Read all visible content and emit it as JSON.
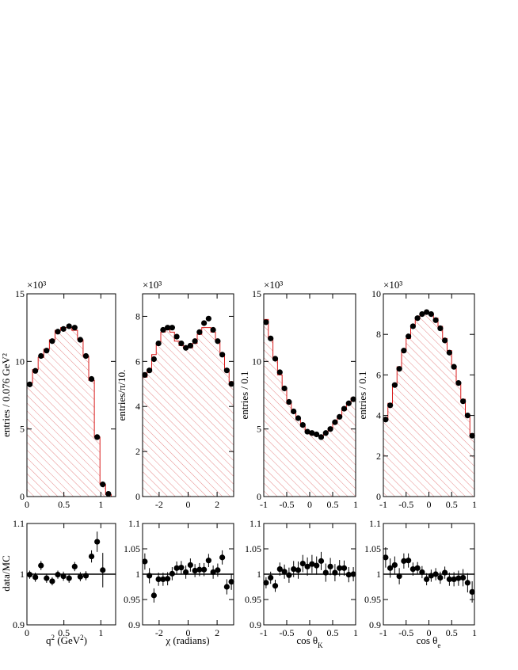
{
  "chart_data": [
    {
      "type": "histogram",
      "ylabel": "entries / 0.076 GeV²",
      "multiplier": "×10³",
      "xlim": [
        0,
        1.2
      ],
      "ylim": [
        0,
        15
      ],
      "xticks": [
        0,
        0.5,
        1
      ],
      "xtick_labels": [
        "0",
        "0.5",
        "1"
      ],
      "yticks": [
        0,
        5,
        10,
        15
      ],
      "ytick_labels": [
        "0",
        "5",
        "10",
        "15"
      ],
      "bin_edges": [
        0,
        0.076,
        0.152,
        0.228,
        0.304,
        0.38,
        0.456,
        0.532,
        0.608,
        0.684,
        0.76,
        0.836,
        0.912,
        0.988,
        1.064,
        1.14
      ],
      "mc": [
        8.4,
        9.4,
        10.3,
        10.9,
        11.6,
        12.3,
        12.5,
        12.5,
        12.3,
        11.6,
        10.4,
        8.6,
        4.4,
        0.9,
        0.15
      ],
      "data_x": [
        0.038,
        0.114,
        0.19,
        0.266,
        0.342,
        0.418,
        0.494,
        0.57,
        0.646,
        0.722,
        0.798,
        0.874,
        0.95,
        1.026,
        1.102
      ],
      "data_y": [
        8.3,
        9.3,
        10.4,
        10.8,
        11.5,
        12.2,
        12.4,
        12.6,
        12.5,
        11.6,
        10.4,
        8.7,
        4.4,
        0.9,
        0.2
      ]
    },
    {
      "type": "histogram",
      "ylabel": "entries/π/10.",
      "multiplier": "×10³",
      "xlim": [
        -3.1416,
        3.1416
      ],
      "ylim": [
        0,
        9
      ],
      "xticks": [
        -2,
        0,
        2
      ],
      "xtick_labels": [
        "-2",
        "0",
        "2"
      ],
      "yticks": [
        0,
        2,
        4,
        6,
        8
      ],
      "ytick_labels": [
        "0",
        "2",
        "4",
        "6",
        "8"
      ],
      "bin_edges": [
        -3.1416,
        -2.8274,
        -2.5133,
        -2.1991,
        -1.885,
        -1.5708,
        -1.2566,
        -0.9425,
        -0.6283,
        -0.3142,
        0,
        0.3142,
        0.6283,
        0.9425,
        1.2566,
        1.5708,
        1.885,
        2.1991,
        2.5133,
        2.8274,
        3.1416
      ],
      "mc": [
        5.3,
        5.6,
        6.3,
        6.8,
        7.3,
        7.4,
        7.3,
        6.9,
        6.7,
        6.6,
        6.6,
        6.8,
        7.2,
        7.5,
        7.5,
        7.3,
        6.9,
        6.3,
        5.6,
        5.1
      ],
      "data_x": [
        -2.9845,
        -2.6704,
        -2.3562,
        -2.042,
        -1.7279,
        -1.4137,
        -1.0996,
        -0.7854,
        -0.4712,
        -0.1571,
        0.1571,
        0.4712,
        0.7854,
        1.0996,
        1.4137,
        1.7279,
        2.042,
        2.3562,
        2.6704,
        2.9845
      ],
      "data_y": [
        5.4,
        5.6,
        6.1,
        6.8,
        7.4,
        7.5,
        7.5,
        7.1,
        6.8,
        6.6,
        6.7,
        6.9,
        7.3,
        7.7,
        7.9,
        7.4,
        6.9,
        6.3,
        5.6,
        5.0
      ]
    },
    {
      "type": "histogram",
      "ylabel": "entries / 0.1",
      "multiplier": "×10³",
      "xlim": [
        -1,
        1
      ],
      "ylim": [
        0,
        15
      ],
      "xticks": [
        -1,
        -0.5,
        0,
        0.5,
        1
      ],
      "xtick_labels": [
        "-1",
        "-0.5",
        "0",
        "0.5",
        "1"
      ],
      "yticks": [
        0,
        5,
        10,
        15
      ],
      "ytick_labels": [
        "0",
        "5",
        "10",
        "15"
      ],
      "bin_edges": [
        -1,
        -0.9,
        -0.8,
        -0.7,
        -0.6,
        -0.5,
        -0.4,
        -0.3,
        -0.2,
        -0.1,
        0,
        0.1,
        0.2,
        0.3,
        0.4,
        0.5,
        0.6,
        0.7,
        0.8,
        0.9,
        1
      ],
      "mc": [
        13.1,
        11.7,
        10.2,
        9.0,
        7.9,
        6.9,
        6.2,
        5.7,
        5.2,
        4.8,
        4.6,
        4.5,
        4.5,
        4.7,
        5.0,
        5.4,
        5.9,
        6.4,
        6.9,
        7.3
      ],
      "data_x": [
        -0.95,
        -0.85,
        -0.75,
        -0.65,
        -0.55,
        -0.45,
        -0.35,
        -0.25,
        -0.15,
        -0.05,
        0.05,
        0.15,
        0.25,
        0.35,
        0.45,
        0.55,
        0.65,
        0.75,
        0.85,
        0.95
      ],
      "data_y": [
        12.9,
        11.7,
        10.2,
        9.2,
        8.0,
        7.0,
        6.3,
        5.8,
        5.3,
        4.8,
        4.7,
        4.6,
        4.4,
        4.7,
        5.0,
        5.5,
        5.9,
        6.5,
        6.9,
        7.2
      ]
    },
    {
      "type": "histogram",
      "ylabel": "entries / 0.1",
      "multiplier": "×10³",
      "xlim": [
        -1,
        1
      ],
      "ylim": [
        0,
        10
      ],
      "xticks": [
        -1,
        -0.5,
        0,
        0.5,
        1
      ],
      "xtick_labels": [
        "-1",
        "-0.5",
        "0",
        "0.5",
        "1"
      ],
      "yticks": [
        0,
        2,
        4,
        6,
        8,
        10
      ],
      "ytick_labels": [
        "0",
        "2",
        "4",
        "6",
        "8",
        "10"
      ],
      "bin_edges": [
        -1,
        -0.9,
        -0.8,
        -0.7,
        -0.6,
        -0.5,
        -0.4,
        -0.3,
        -0.2,
        -0.1,
        0,
        0.1,
        0.2,
        0.3,
        0.4,
        0.5,
        0.6,
        0.7,
        0.8,
        0.9,
        1
      ],
      "mc": [
        3.8,
        4.6,
        5.5,
        6.4,
        7.2,
        7.8,
        8.4,
        8.8,
        9.0,
        9.1,
        9.0,
        8.8,
        8.4,
        7.8,
        7.2,
        6.4,
        5.6,
        4.8,
        4.0,
        3.1
      ],
      "data_x": [
        -0.95,
        -0.85,
        -0.75,
        -0.65,
        -0.55,
        -0.45,
        -0.35,
        -0.25,
        -0.15,
        -0.05,
        0.05,
        0.15,
        0.25,
        0.35,
        0.45,
        0.55,
        0.65,
        0.75,
        0.85,
        0.95
      ],
      "data_y": [
        3.8,
        4.5,
        5.5,
        6.3,
        7.2,
        7.9,
        8.4,
        8.8,
        9.0,
        9.1,
        9.0,
        8.7,
        8.3,
        7.7,
        7.1,
        6.4,
        5.6,
        4.7,
        4.0,
        3.0
      ]
    },
    {
      "type": "scatter",
      "ylabel": "data/MC",
      "xlabel": "q² (GeV²)",
      "xlim": [
        0,
        1.2
      ],
      "ylim": [
        0.9,
        1.1
      ],
      "xticks": [
        0,
        0.5,
        1
      ],
      "xtick_labels": [
        "0",
        "0.5",
        "1"
      ],
      "yticks": [
        0.9,
        1,
        1.1
      ],
      "ytick_labels": [
        "0.9",
        "1",
        "1.1"
      ],
      "x": [
        0.038,
        0.114,
        0.19,
        0.266,
        0.342,
        0.418,
        0.494,
        0.57,
        0.646,
        0.722,
        0.798,
        0.874,
        0.95,
        1.026
      ],
      "y": [
        0.999,
        0.994,
        1.017,
        0.992,
        0.986,
        0.999,
        0.996,
        0.992,
        1.015,
        0.995,
        0.997,
        1.035,
        1.064,
        1.008
      ],
      "err": [
        0.008,
        0.009,
        0.009,
        0.009,
        0.008,
        0.008,
        0.009,
        0.009,
        0.009,
        0.009,
        0.009,
        0.012,
        0.02,
        0.034
      ],
      "reference": 1
    },
    {
      "type": "scatter",
      "xlabel": "χ (radians)",
      "xlim": [
        -3.1416,
        3.1416
      ],
      "ylim": [
        0.9,
        1.1
      ],
      "xticks": [
        -2,
        0,
        2
      ],
      "xtick_labels": [
        "-2",
        "0",
        "2"
      ],
      "yticks": [
        0.9,
        0.95,
        1,
        1.05,
        1.1
      ],
      "ytick_labels": [
        "0.9",
        "0.95",
        "1",
        "1.05",
        "1.1"
      ],
      "x": [
        -2.9845,
        -2.6704,
        -2.3562,
        -2.042,
        -1.7279,
        -1.4137,
        -1.0996,
        -0.7854,
        -0.4712,
        -0.1571,
        0.1571,
        0.4712,
        0.7854,
        1.0996,
        1.4137,
        1.7279,
        2.042,
        2.3562,
        2.6704,
        2.9845
      ],
      "y": [
        1.025,
        0.997,
        0.958,
        0.99,
        0.99,
        0.991,
        1.001,
        1.012,
        1.013,
        1.004,
        1.018,
        1.007,
        1.009,
        1.009,
        1.027,
        1.004,
        1.008,
        1.033,
        0.975,
        0.985
      ],
      "err": [
        0.016,
        0.015,
        0.014,
        0.013,
        0.013,
        0.013,
        0.013,
        0.013,
        0.013,
        0.013,
        0.013,
        0.013,
        0.013,
        0.013,
        0.013,
        0.013,
        0.013,
        0.014,
        0.015,
        0.016
      ],
      "reference": 1
    },
    {
      "type": "scatter",
      "xlabel": "cos θ_K",
      "xlim": [
        -1,
        1
      ],
      "ylim": [
        0.9,
        1.1
      ],
      "xticks": [
        -1,
        -0.5,
        0,
        0.5,
        1
      ],
      "xtick_labels": [
        "-1",
        "-0.5",
        "0",
        "0.5",
        "1"
      ],
      "yticks": [
        0.9,
        0.95,
        1,
        1.05,
        1.1
      ],
      "ytick_labels": [
        "0.9",
        "0.95",
        "1",
        "1.05",
        "1.1"
      ],
      "x": [
        -0.95,
        -0.85,
        -0.75,
        -0.65,
        -0.55,
        -0.45,
        -0.35,
        -0.25,
        -0.15,
        -0.05,
        0.05,
        0.15,
        0.25,
        0.35,
        0.45,
        0.55,
        0.65,
        0.75,
        0.85,
        0.95
      ],
      "y": [
        0.983,
        0.993,
        0.977,
        1.01,
        1.005,
        0.998,
        1.01,
        1.008,
        1.021,
        1.015,
        1.02,
        1.017,
        1.026,
        1.003,
        1.015,
        1.003,
        1.012,
        1.012,
        0.999,
        1.0
      ],
      "err": [
        0.011,
        0.012,
        0.012,
        0.013,
        0.014,
        0.015,
        0.016,
        0.017,
        0.017,
        0.018,
        0.018,
        0.018,
        0.018,
        0.018,
        0.017,
        0.017,
        0.016,
        0.015,
        0.015,
        0.014
      ],
      "reference": 1
    },
    {
      "type": "scatter",
      "xlabel": "cos θ_e",
      "xlim": [
        -1,
        1
      ],
      "ylim": [
        0.9,
        1.1
      ],
      "xticks": [
        -1,
        -0.5,
        0,
        0.5,
        1
      ],
      "xtick_labels": [
        "-1",
        "-0.5",
        "0",
        "0.5",
        "1"
      ],
      "yticks": [
        0.9,
        0.95,
        1,
        1.05,
        1.1
      ],
      "ytick_labels": [
        "0.9",
        "0.95",
        "1",
        "1.05",
        "1.1"
      ],
      "x": [
        -0.95,
        -0.85,
        -0.75,
        -0.65,
        -0.55,
        -0.45,
        -0.35,
        -0.25,
        -0.15,
        -0.05,
        0.05,
        0.15,
        0.25,
        0.35,
        0.45,
        0.55,
        0.65,
        0.75,
        0.85,
        0.95
      ],
      "y": [
        1.033,
        1.012,
        1.018,
        0.996,
        1.026,
        1.027,
        1.01,
        1.012,
        1.004,
        0.99,
        0.997,
        1.0,
        0.993,
        1.003,
        0.99,
        0.99,
        0.992,
        0.993,
        0.983,
        0.965
      ],
      "err": [
        0.02,
        0.019,
        0.017,
        0.016,
        0.015,
        0.014,
        0.013,
        0.012,
        0.012,
        0.012,
        0.012,
        0.012,
        0.012,
        0.012,
        0.013,
        0.014,
        0.015,
        0.017,
        0.019,
        0.021
      ],
      "reference": 1
    }
  ],
  "colors": {
    "mc_line": "#d81b1b",
    "mc_hatch": "#e06a6a",
    "data_marker": "#000000"
  }
}
